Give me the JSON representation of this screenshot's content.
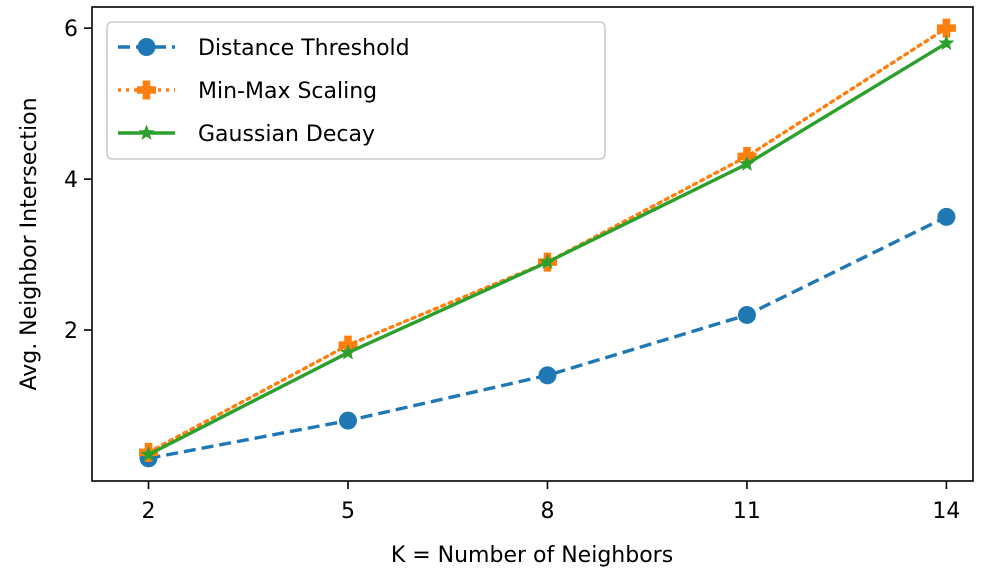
{
  "chart_data": {
    "type": "line",
    "title": "",
    "xlabel": "K = Number of Neighbors",
    "ylabel": "Avg. Neighbor Intersection",
    "x": [
      2,
      5,
      8,
      11,
      14
    ],
    "xticks": [
      "2",
      "5",
      "8",
      "11",
      "14"
    ],
    "xlim": [
      1.15,
      14.4
    ],
    "yticks": [
      "2",
      "4",
      "6"
    ],
    "ylim": [
      0.0,
      6.28
    ],
    "grid": false,
    "legend_position": "top-left",
    "series": [
      {
        "name": "Distance Threshold",
        "values": [
          0.3,
          0.8,
          1.4,
          2.2,
          3.5
        ],
        "color": "#1f77b4",
        "linestyle": "dashed",
        "marker": "circle"
      },
      {
        "name": "Min-Max Scaling",
        "values": [
          0.38,
          1.8,
          2.9,
          4.3,
          6.0
        ],
        "color": "#ff7f0e",
        "linestyle": "dotted",
        "marker": "plus"
      },
      {
        "name": "Gaussian Decay",
        "values": [
          0.35,
          1.7,
          2.9,
          4.2,
          5.8
        ],
        "color": "#2ca02c",
        "linestyle": "solid",
        "marker": "star"
      }
    ]
  }
}
